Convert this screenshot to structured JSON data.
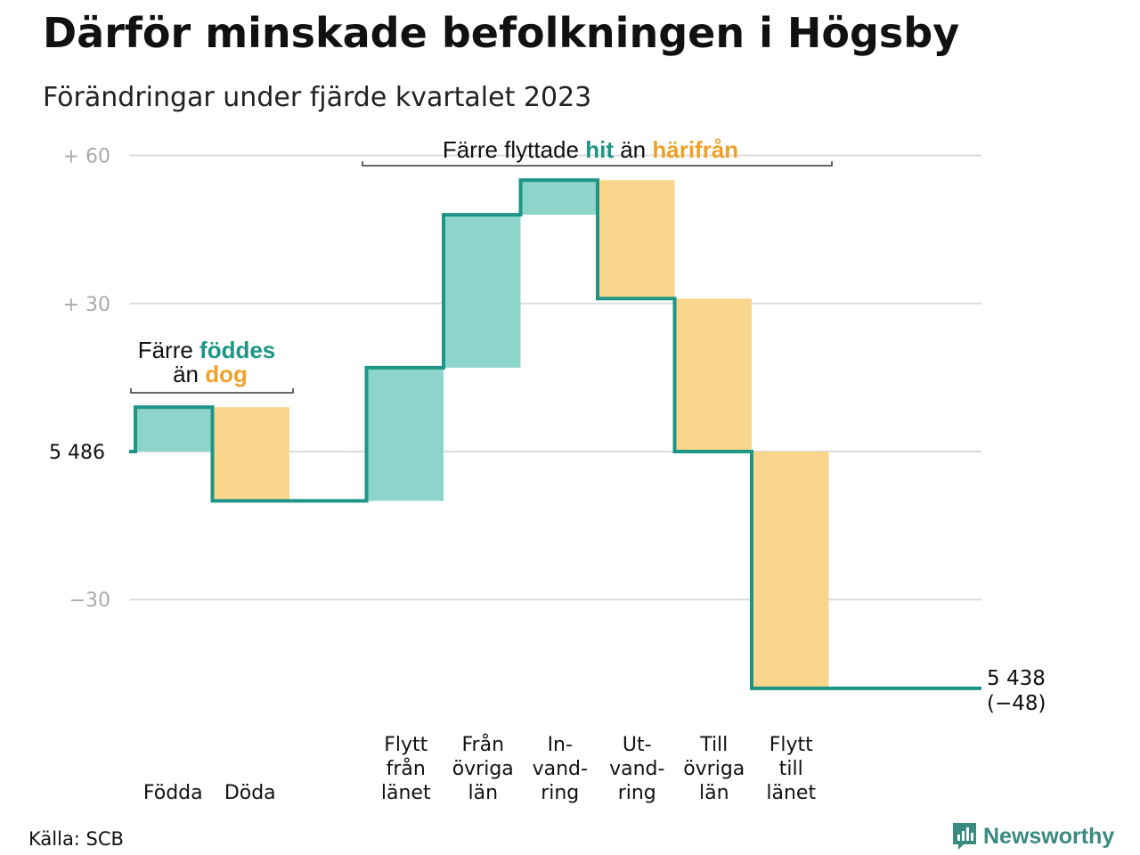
{
  "header": {
    "title": "Därför minskade befolkningen i Högsby",
    "subtitle": "Förändringar under fjärde kvartalet 2023"
  },
  "footer": {
    "source": "Källa: SCB",
    "brand": "Newsworthy"
  },
  "colors": {
    "inflow": "#8dd5cb",
    "outflow": "#fad58c",
    "step_line": "#1e9586",
    "inflow_text": "#1e9586",
    "outflow_text": "#f0a12a",
    "grid": "#dddddd"
  },
  "chart_data": {
    "type": "waterfall",
    "start_label": "5 486",
    "start_value": 5486,
    "y_ticks": [
      {
        "offset": 60,
        "label": "+ 60"
      },
      {
        "offset": 30,
        "label": "+ 30"
      },
      {
        "offset": -30,
        "label": "−30"
      }
    ],
    "ylim": [
      -48,
      60
    ],
    "steps": [
      {
        "label_lines": [
          "Födda"
        ],
        "value": 9,
        "kind": "inflow"
      },
      {
        "label_lines": [
          "Döda"
        ],
        "value": -19,
        "kind": "outflow"
      },
      {
        "label_lines": [],
        "value": 0,
        "kind": "gap"
      },
      {
        "label_lines": [
          "Flytt",
          "från",
          "länet"
        ],
        "value": 27,
        "kind": "inflow"
      },
      {
        "label_lines": [
          "Från",
          "övriga",
          "län"
        ],
        "value": 31,
        "kind": "inflow"
      },
      {
        "label_lines": [
          "In-",
          "vand-",
          "ring"
        ],
        "value": 7,
        "kind": "inflow"
      },
      {
        "label_lines": [
          "Ut-",
          "vand-",
          "ring"
        ],
        "value": -24,
        "kind": "outflow"
      },
      {
        "label_lines": [
          "Till",
          "övriga",
          "län"
        ],
        "value": -31,
        "kind": "outflow"
      },
      {
        "label_lines": [
          "Flytt",
          "till",
          "länet"
        ],
        "value": -48,
        "kind": "outflow"
      }
    ],
    "end_label": [
      "5 438",
      "(−48)"
    ],
    "annotations": {
      "births": {
        "prefix": "Färre ",
        "hi1": "föddes",
        "mid": "än ",
        "hi2": "dog"
      },
      "migration": {
        "prefix": "Färre flyttade ",
        "hi1": "hit",
        "mid": " än ",
        "hi2": "härifrån"
      }
    }
  }
}
